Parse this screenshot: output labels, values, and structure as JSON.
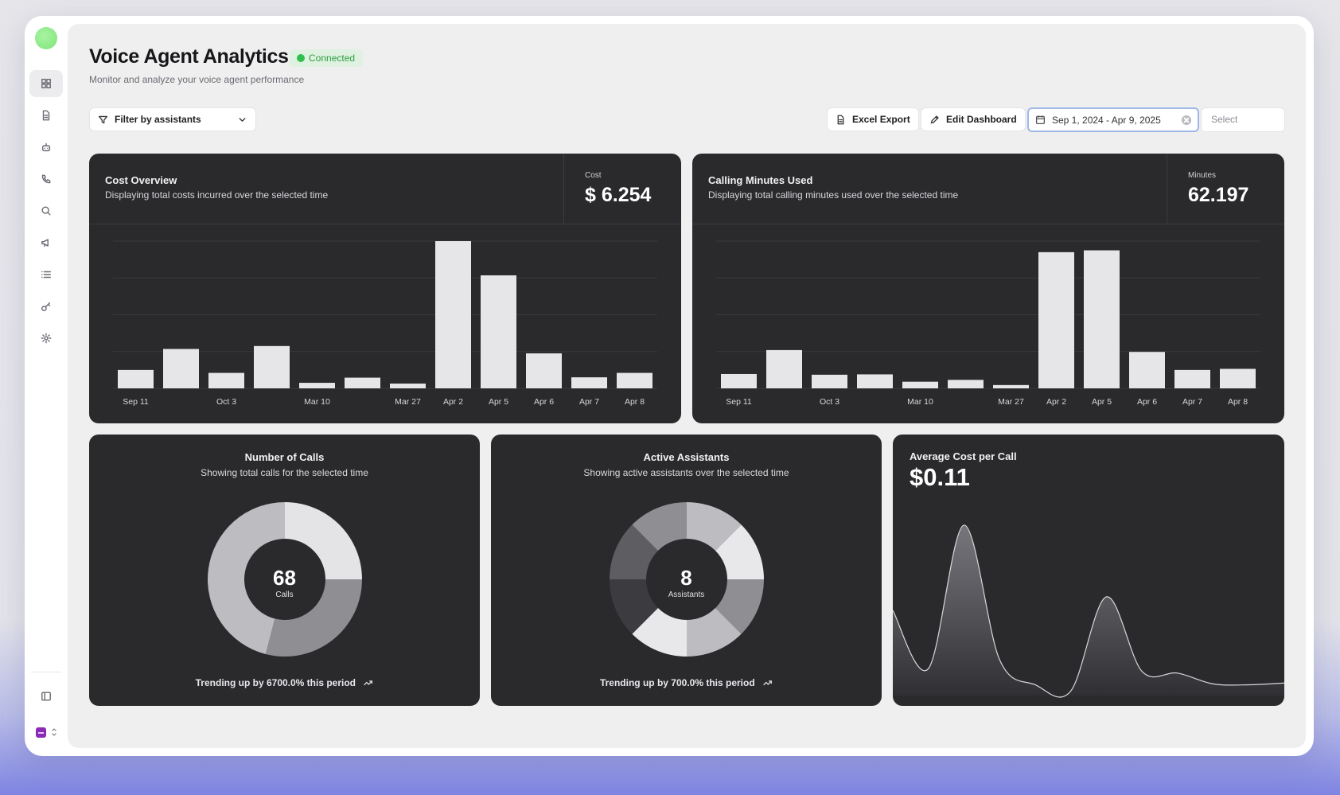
{
  "header": {
    "title": "Voice Agent Analytics",
    "status": "Connected",
    "subtitle": "Monitor and analyze your voice agent performance"
  },
  "toolbar": {
    "filter_label": "Filter by assistants",
    "export_label": "Excel Export",
    "edit_label": "Edit Dashboard",
    "date_range": "Sep 1, 2024 - Apr 9, 2025",
    "select_placeholder": "Select"
  },
  "sidebar": {
    "items": [
      {
        "icon": "dashboard-icon",
        "active": true
      },
      {
        "icon": "document-icon"
      },
      {
        "icon": "bot-icon"
      },
      {
        "icon": "phone-icon"
      },
      {
        "icon": "search-icon"
      },
      {
        "icon": "megaphone-icon"
      },
      {
        "icon": "list-icon"
      },
      {
        "icon": "key-icon"
      },
      {
        "icon": "gear-icon"
      }
    ]
  },
  "cards": {
    "cost": {
      "title": "Cost Overview",
      "description": "Displaying total costs incurred over the selected time",
      "stat_label": "Cost",
      "stat_value": "$ 6.254"
    },
    "minutes": {
      "title": "Calling Minutes Used",
      "description": "Displaying total calling minutes used over the selected time",
      "stat_label": "Minutes",
      "stat_value": "62.197"
    },
    "calls": {
      "title": "Number of Calls",
      "description": "Showing total calls for the selected time",
      "center_value": "68",
      "center_label": "Calls",
      "trend": "Trending up by 6700.0% this period"
    },
    "assistants": {
      "title": "Active Assistants",
      "description": "Showing active assistants over the selected time",
      "center_value": "8",
      "center_label": "Assistants",
      "trend": "Trending up by 700.0% this period"
    },
    "avg_cost": {
      "title": "Average Cost per Call",
      "value": "$0.11"
    }
  },
  "chart_data": [
    {
      "type": "bar",
      "categories": [
        "Sep 11",
        "",
        "Oct 3",
        "",
        "Mar 10",
        "",
        "Mar 27",
        "Apr 2",
        "Apr 5",
        "Apr 6",
        "Apr 7",
        "Apr 8"
      ],
      "values": [
        0.5,
        1.07,
        0.42,
        1.15,
        0.15,
        0.29,
        0.13,
        4.0,
        3.07,
        0.95,
        0.3,
        0.42
      ],
      "ylim": [
        0,
        4
      ]
    },
    {
      "type": "bar",
      "categories": [
        "Sep 11",
        "",
        "Oct 3",
        "",
        "Mar 10",
        "",
        "Mar 27",
        "Apr 2",
        "Apr 5",
        "Apr 6",
        "Apr 7",
        "Apr 8"
      ],
      "values": [
        3.9,
        10.4,
        3.7,
        3.8,
        1.8,
        2.3,
        0.9,
        37.0,
        37.5,
        9.9,
        5.0,
        5.3
      ],
      "ylim": [
        0,
        40
      ]
    },
    {
      "type": "pie",
      "values": [
        25,
        29,
        46
      ],
      "colors": [
        "#e4e4e6",
        "#8e8e93",
        "#bdbdc1"
      ]
    },
    {
      "type": "pie",
      "values": [
        1,
        1,
        1,
        1,
        1,
        1,
        1,
        1
      ],
      "colors": [
        "#bdbdc1",
        "#e8e8ea",
        "#8e8e93",
        "#bdbdc1",
        "#e8e8ea",
        "#3c3c40",
        "#5d5d62",
        "#8e8e93"
      ]
    },
    {
      "type": "area",
      "x": [
        0,
        1,
        2,
        3,
        4,
        5,
        6,
        7,
        8,
        9,
        10,
        11
      ],
      "values": [
        0.095,
        0.03,
        0.19,
        0.04,
        0.012,
        0.005,
        0.11,
        0.027,
        0.025,
        0.013,
        0.012,
        0.014
      ],
      "ylim": [
        0,
        0.22
      ]
    }
  ]
}
